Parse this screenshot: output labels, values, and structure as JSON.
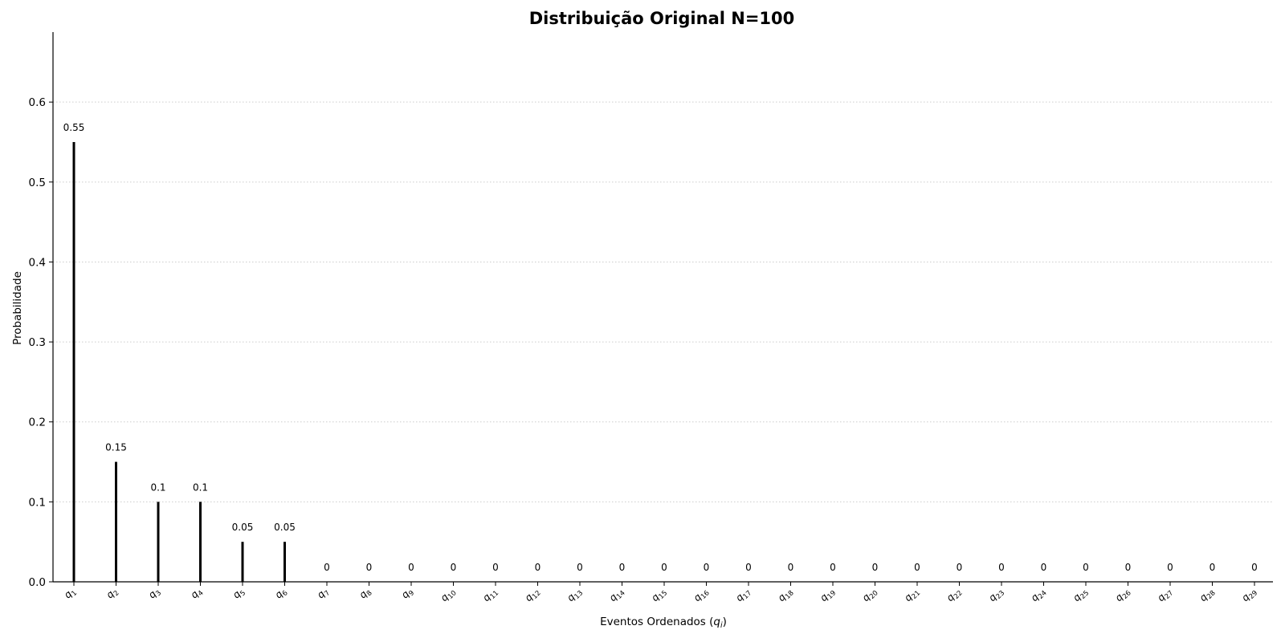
{
  "chart_data": {
    "type": "bar",
    "title": "Distribuição Original N=100",
    "xlabel": "Eventos Ordenados (q_i)",
    "ylabel": "Probabilidade",
    "xlabel_parts": {
      "main": "Eventos Ordenados (",
      "var": "q",
      "sub": "i",
      "tail": ")"
    },
    "categories": [
      "q1",
      "q2",
      "q3",
      "q4",
      "q5",
      "q6",
      "q7",
      "q8",
      "q9",
      "q10",
      "q11",
      "q12",
      "q13",
      "q14",
      "q15",
      "q16",
      "q17",
      "q18",
      "q19",
      "q20",
      "q21",
      "q22",
      "q23",
      "q24",
      "q25",
      "q26",
      "q27",
      "q28",
      "q29"
    ],
    "category_parts": [
      {
        "base": "q",
        "sub": "1"
      },
      {
        "base": "q",
        "sub": "2"
      },
      {
        "base": "q",
        "sub": "3"
      },
      {
        "base": "q",
        "sub": "4"
      },
      {
        "base": "q",
        "sub": "5"
      },
      {
        "base": "q",
        "sub": "6"
      },
      {
        "base": "q",
        "sub": "7"
      },
      {
        "base": "q",
        "sub": "8"
      },
      {
        "base": "q",
        "sub": "9"
      },
      {
        "base": "q",
        "sub": "10"
      },
      {
        "base": "q",
        "sub": "11"
      },
      {
        "base": "q",
        "sub": "12"
      },
      {
        "base": "q",
        "sub": "13"
      },
      {
        "base": "q",
        "sub": "14"
      },
      {
        "base": "q",
        "sub": "15"
      },
      {
        "base": "q",
        "sub": "16"
      },
      {
        "base": "q",
        "sub": "17"
      },
      {
        "base": "q",
        "sub": "18"
      },
      {
        "base": "q",
        "sub": "19"
      },
      {
        "base": "q",
        "sub": "20"
      },
      {
        "base": "q",
        "sub": "21"
      },
      {
        "base": "q",
        "sub": "22"
      },
      {
        "base": "q",
        "sub": "23"
      },
      {
        "base": "q",
        "sub": "24"
      },
      {
        "base": "q",
        "sub": "25"
      },
      {
        "base": "q",
        "sub": "26"
      },
      {
        "base": "q",
        "sub": "27"
      },
      {
        "base": "q",
        "sub": "28"
      },
      {
        "base": "q",
        "sub": "29"
      }
    ],
    "values": [
      0.55,
      0.15,
      0.1,
      0.1,
      0.05,
      0.05,
      0,
      0,
      0,
      0,
      0,
      0,
      0,
      0,
      0,
      0,
      0,
      0,
      0,
      0,
      0,
      0,
      0,
      0,
      0,
      0,
      0,
      0,
      0
    ],
    "value_labels": [
      "0.55",
      "0.15",
      "0.1",
      "0.1",
      "0.05",
      "0.05",
      "0",
      "0",
      "0",
      "0",
      "0",
      "0",
      "0",
      "0",
      "0",
      "0",
      "0",
      "0",
      "0",
      "0",
      "0",
      "0",
      "0",
      "0",
      "0",
      "0",
      "0",
      "0",
      "0"
    ],
    "ylim": [
      0,
      0.6875
    ],
    "yticks": [
      0.0,
      0.1,
      0.2,
      0.3,
      0.4,
      0.5,
      0.6
    ],
    "ytick_labels": [
      "0.0",
      "0.1",
      "0.2",
      "0.3",
      "0.4",
      "0.5",
      "0.6"
    ],
    "grid": "y-dotted",
    "bar_color": "#000000",
    "grid_color": "#cccccc"
  }
}
